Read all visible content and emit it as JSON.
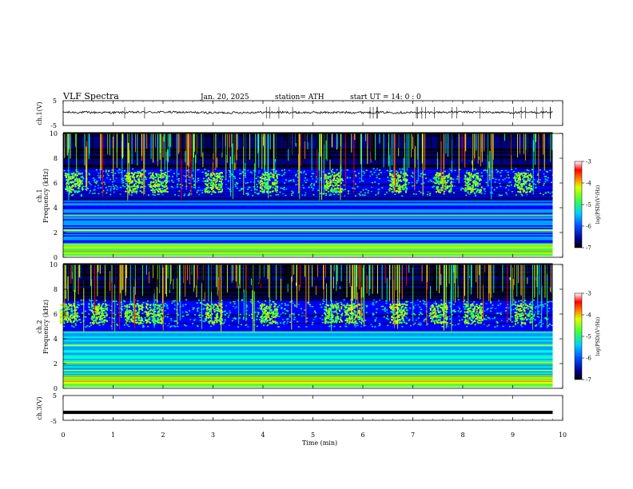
{
  "header": {
    "title": "VLF  Spectra",
    "date": "Jan. 20, 2025",
    "station": "station= ATH",
    "start": "start  UT  =   14: 0  : 0"
  },
  "colors": {
    "frame": "#000000",
    "trace": "#000000",
    "colormap": [
      "#000000",
      "#000080",
      "#0000ff",
      "#00a0ff",
      "#00ffd0",
      "#40ff40",
      "#c0ff00",
      "#ffff00",
      "#ff8000",
      "#ff0000",
      "#ffffff"
    ]
  },
  "chart_data": [
    {
      "type": "line",
      "panel": "ch1-waveform",
      "ylabel": "ch.1(V)",
      "ylim": [
        -5,
        5
      ],
      "yticks": [
        "5",
        "-5"
      ],
      "x": [
        0,
        1,
        2,
        3,
        4,
        5,
        6,
        7,
        8,
        9,
        9.8
      ],
      "values": [
        0.3,
        0.2,
        0.4,
        0.1,
        0.3,
        0.2,
        0.3,
        0.2,
        0.4,
        0.2,
        0.3
      ]
    },
    {
      "type": "heatmap",
      "panel": "ch1-spectrogram",
      "ylabel": "ch.1\nFrequency  (kHz)",
      "ylim": [
        0,
        10
      ],
      "yticks": [
        "0",
        "2",
        "4",
        "6",
        "8",
        "10"
      ],
      "xlim": [
        0,
        10
      ],
      "colorbar": {
        "label": "log(PSD)(V²/Hz)",
        "range": [
          -7,
          -3
        ],
        "ticks": [
          "-3",
          "-4",
          "-5",
          "-6",
          "-7"
        ]
      },
      "bursts_min": [
        0.2,
        1.4,
        1.9,
        3.0,
        4.1,
        5.4,
        6.7,
        7.6,
        8.2,
        9.2
      ]
    },
    {
      "type": "heatmap",
      "panel": "ch2-spectrogram",
      "ylabel": "ch.2\nFrequency  (kHz)",
      "ylim": [
        0,
        10
      ],
      "yticks": [
        "0",
        "2",
        "4",
        "6",
        "8",
        "10"
      ],
      "xlim": [
        0,
        10
      ],
      "colorbar": {
        "label": "log(PSD)(V²/Hz)",
        "range": [
          -7,
          -3
        ],
        "ticks": [
          "-3",
          "-4",
          "-5",
          "-6",
          "-7"
        ]
      },
      "bursts_min": [
        0.1,
        0.7,
        1.4,
        1.8,
        3.0,
        4.1,
        5.4,
        5.8,
        6.7,
        7.5,
        8.2,
        9.2
      ]
    },
    {
      "type": "line",
      "panel": "ch3-waveform",
      "ylabel": "ch.3(V)",
      "ylim": [
        -5,
        5
      ],
      "yticks": [
        "5",
        "-5"
      ],
      "x": [
        0,
        9.8
      ],
      "values": [
        -1.8,
        -1.8
      ]
    }
  ],
  "xaxis": {
    "label": "Time  (min)",
    "ticks": [
      "0",
      "1",
      "2",
      "3",
      "4",
      "5",
      "6",
      "7",
      "8",
      "9",
      "10"
    ]
  }
}
